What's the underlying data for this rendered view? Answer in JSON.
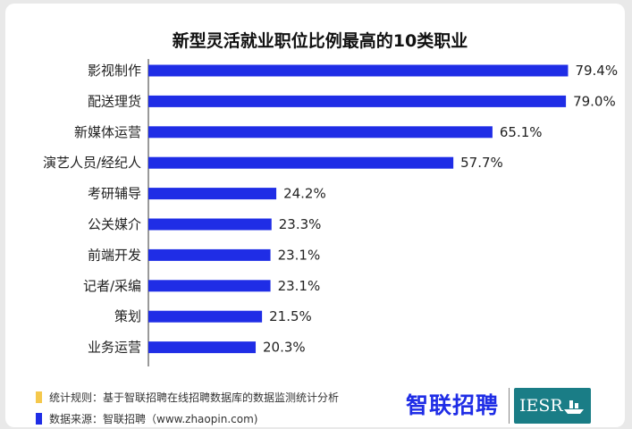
{
  "chart_data": {
    "type": "bar",
    "orientation": "horizontal",
    "title": "新型灵活就业职位比例最高的10类职业",
    "categories": [
      "影视制作",
      "配送理货",
      "新媒体运营",
      "演艺人员/经纪人",
      "考研辅导",
      "公关媒介",
      "前端开发",
      "记者/采编",
      "策划",
      "业务运营"
    ],
    "values": [
      79.4,
      79.0,
      65.1,
      57.7,
      24.2,
      23.3,
      23.1,
      23.1,
      21.5,
      20.3
    ],
    "value_labels": [
      "79.4%",
      "79.0%",
      "65.1%",
      "57.7%",
      "24.2%",
      "23.3%",
      "23.1%",
      "23.1%",
      "21.5%",
      "20.3%"
    ],
    "xlim": [
      0,
      80
    ],
    "bar_color": "#1f2de6",
    "grid": false,
    "legend": "none"
  },
  "notes": [
    {
      "color": "#f5c84c",
      "text": "统计规则：基于智联招聘在线招聘数据库的数据监测统计分析"
    },
    {
      "color": "#1f2de6",
      "text": "数据来源：智联招聘（www.zhaopin.com)"
    }
  ],
  "logos": {
    "zhaopin": "智联招聘",
    "iesr": "IESR"
  }
}
